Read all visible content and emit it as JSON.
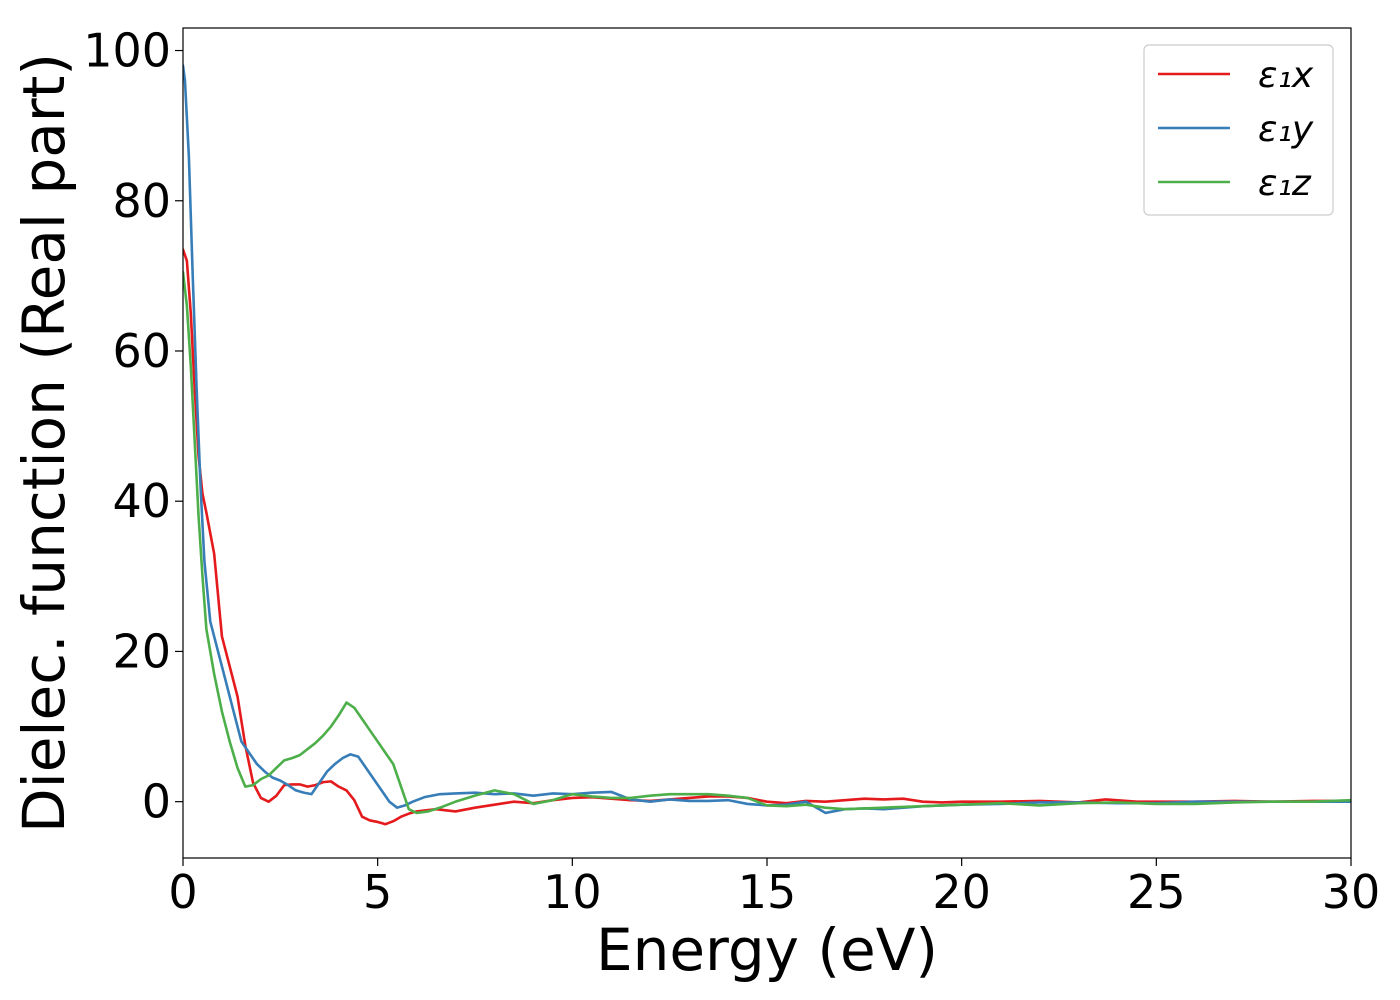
{
  "chart_data": {
    "type": "line",
    "title": "",
    "xlabel": "Energy (eV)",
    "ylabel": "Dielec. function (Real part)",
    "xlim": [
      0,
      30
    ],
    "ylim": [
      -7.5,
      103
    ],
    "xticks": [
      0,
      5,
      10,
      15,
      20,
      25,
      30
    ],
    "xtick_labels": [
      "0",
      "5",
      "10",
      "15",
      "20",
      "25",
      "30"
    ],
    "yticks": [
      0,
      20,
      40,
      60,
      80,
      100
    ],
    "ytick_labels": [
      "0",
      "20",
      "40",
      "60",
      "80",
      "100"
    ],
    "grid": false,
    "legend": "top-right",
    "series": [
      {
        "name": "ε₁x",
        "color": "#e41a1c",
        "x": [
          0,
          0.1,
          0.2,
          0.3,
          0.4,
          0.5,
          0.6,
          0.8,
          1.0,
          1.2,
          1.4,
          1.6,
          1.8,
          2.0,
          2.2,
          2.4,
          2.6,
          2.8,
          3.0,
          3.2,
          3.4,
          3.6,
          3.8,
          4.0,
          4.2,
          4.4,
          4.6,
          4.8,
          5.0,
          5.2,
          5.4,
          5.6,
          5.8,
          6.0,
          6.5,
          7.0,
          7.5,
          8.0,
          8.5,
          9.0,
          9.5,
          10.0,
          10.5,
          11.0,
          11.5,
          12.0,
          12.5,
          13.0,
          13.5,
          14.0,
          14.5,
          15.0,
          15.5,
          16.0,
          16.5,
          17.0,
          17.5,
          18.0,
          18.5,
          19.0,
          19.5,
          20.0,
          21.0,
          22.0,
          23.0,
          23.7,
          24.5,
          25.0,
          26.0,
          27.0,
          28.0,
          29.0,
          30.0
        ],
        "values": [
          73.5,
          72,
          65,
          55,
          46,
          41,
          38.5,
          33,
          22,
          18,
          14,
          7.5,
          2.5,
          0.5,
          0.0,
          0.8,
          2.2,
          2.3,
          2.3,
          2.0,
          2.2,
          2.6,
          2.7,
          2.0,
          1.5,
          0.2,
          -2.0,
          -2.5,
          -2.7,
          -3.0,
          -2.6,
          -2.0,
          -1.6,
          -1.3,
          -1.0,
          -1.3,
          -0.8,
          -0.4,
          0.0,
          -0.2,
          0.2,
          0.5,
          0.6,
          0.4,
          0.2,
          0.1,
          0.3,
          0.5,
          0.7,
          0.7,
          0.5,
          0.0,
          -0.2,
          0.1,
          0.0,
          0.2,
          0.4,
          0.3,
          0.4,
          0.0,
          -0.1,
          0.0,
          0.0,
          0.1,
          -0.1,
          0.3,
          0.0,
          0.0,
          0.0,
          0.1,
          0.0,
          0.1,
          0.1
        ]
      },
      {
        "name": "ε₁y",
        "color": "#377eb8",
        "x": [
          0,
          0.05,
          0.15,
          0.25,
          0.35,
          0.45,
          0.55,
          0.7,
          0.9,
          1.1,
          1.3,
          1.5,
          1.7,
          1.9,
          2.1,
          2.3,
          2.5,
          2.7,
          2.9,
          3.1,
          3.3,
          3.5,
          3.7,
          3.9,
          4.1,
          4.3,
          4.5,
          4.7,
          4.9,
          5.1,
          5.3,
          5.5,
          5.7,
          5.9,
          6.2,
          6.6,
          7.0,
          7.5,
          8.0,
          8.5,
          9.0,
          9.5,
          10.0,
          10.5,
          11.0,
          11.5,
          12.0,
          12.5,
          13.0,
          13.5,
          14.0,
          14.5,
          15.0,
          15.5,
          16.0,
          16.5,
          17.0,
          17.5,
          18.0,
          19.0,
          20.0,
          21.0,
          22.0,
          23.0,
          24.0,
          25.0,
          26.0,
          27.0,
          28.0,
          29.0,
          30.0
        ],
        "values": [
          98,
          96,
          86,
          70,
          55,
          42,
          32,
          24,
          20,
          16,
          12,
          8,
          6.5,
          5.0,
          4.0,
          3.2,
          2.8,
          2.2,
          1.5,
          1.2,
          1.0,
          2.5,
          4.0,
          5.0,
          5.8,
          6.3,
          6.0,
          4.5,
          3.0,
          1.5,
          0.0,
          -0.8,
          -0.5,
          0.0,
          0.6,
          1.0,
          1.1,
          1.2,
          1.0,
          1.1,
          0.8,
          1.1,
          1.0,
          1.2,
          1.3,
          0.3,
          0.0,
          0.3,
          0.1,
          0.1,
          0.2,
          -0.3,
          -0.5,
          -0.4,
          0.0,
          -1.5,
          -1.0,
          -0.9,
          -1.0,
          -0.6,
          -0.4,
          -0.3,
          -0.1,
          -0.1,
          -0.2,
          -0.2,
          0.0,
          0.0,
          0.0,
          0.0,
          0.0
        ]
      },
      {
        "name": "ε₁z",
        "color": "#4daf4a",
        "x": [
          0,
          0.1,
          0.2,
          0.3,
          0.4,
          0.5,
          0.6,
          0.8,
          1.0,
          1.2,
          1.4,
          1.6,
          1.8,
          2.0,
          2.2,
          2.4,
          2.6,
          2.8,
          3.0,
          3.2,
          3.4,
          3.6,
          3.8,
          4.0,
          4.2,
          4.4,
          4.6,
          4.8,
          5.0,
          5.2,
          5.4,
          5.6,
          5.8,
          6.0,
          6.3,
          6.6,
          7.0,
          7.5,
          8.0,
          8.5,
          9.0,
          9.5,
          10.0,
          10.5,
          11.0,
          11.5,
          12.0,
          12.5,
          13.0,
          13.5,
          14.0,
          14.5,
          15.0,
          15.5,
          16.0,
          16.5,
          17.0,
          17.5,
          18.0,
          19.0,
          20.0,
          21.0,
          22.0,
          23.0,
          24.0,
          25.0,
          26.0,
          27.0,
          28.0,
          29.0,
          30.0
        ],
        "values": [
          70.5,
          66,
          58,
          48,
          38,
          30,
          23,
          17,
          12,
          8,
          4.5,
          2.0,
          2.2,
          3.0,
          3.5,
          4.5,
          5.5,
          5.8,
          6.2,
          7.0,
          7.8,
          8.8,
          10.0,
          11.5,
          13.2,
          12.5,
          11.0,
          9.5,
          8.0,
          6.5,
          5.0,
          2.0,
          -1.0,
          -1.5,
          -1.3,
          -0.8,
          0.0,
          0.8,
          1.5,
          1.0,
          -0.3,
          0.2,
          1.0,
          0.7,
          0.5,
          0.5,
          0.8,
          1.0,
          1.0,
          1.0,
          0.8,
          0.5,
          -0.5,
          -0.6,
          -0.4,
          -0.8,
          -1.0,
          -0.9,
          -0.8,
          -0.6,
          -0.4,
          -0.2,
          -0.5,
          -0.2,
          -0.1,
          -0.3,
          -0.3,
          -0.1,
          0.0,
          0.0,
          0.2
        ]
      }
    ]
  }
}
